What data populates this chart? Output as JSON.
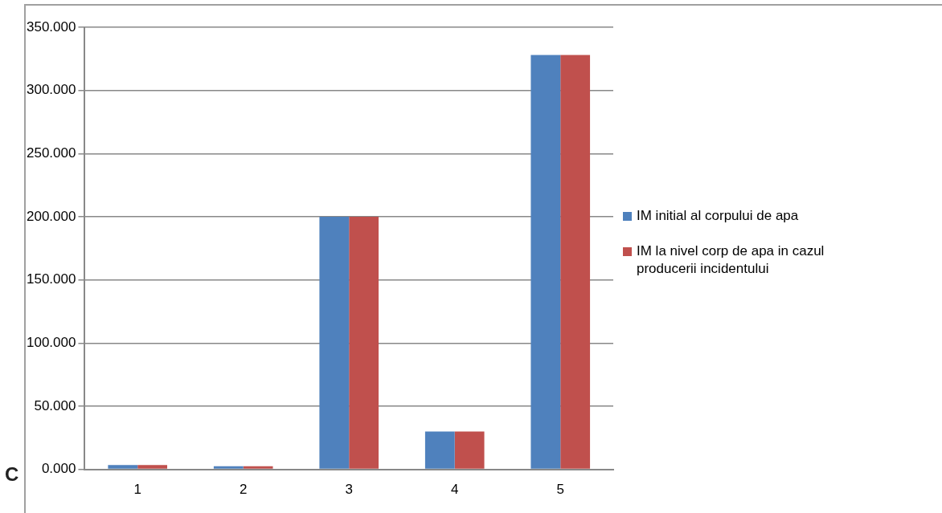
{
  "chart_data": {
    "type": "bar",
    "categories": [
      "1",
      "2",
      "3",
      "4",
      "5"
    ],
    "series": [
      {
        "name": "IM initial al corpului de apa",
        "color": "#4f81bd",
        "values": [
          3.4,
          2.4,
          200,
          30,
          328
        ]
      },
      {
        "name": "IM la nivel corp de apa in cazul producerii incidentului",
        "color": "#c0504d",
        "values": [
          3.4,
          2.4,
          200,
          30,
          328
        ]
      }
    ],
    "ylim": [
      0,
      350
    ],
    "yticks": [
      {
        "value": 0,
        "label": "0.000"
      },
      {
        "value": 50,
        "label": "50.000"
      },
      {
        "value": 100,
        "label": "100.000"
      },
      {
        "value": 150,
        "label": "150.000"
      },
      {
        "value": 200,
        "label": "200.000"
      },
      {
        "value": 250,
        "label": "250.000"
      },
      {
        "value": 300,
        "label": "300.000"
      },
      {
        "value": 350,
        "label": "350.000"
      }
    ],
    "grid": "y",
    "legend": "right",
    "annotations": [
      "C"
    ]
  }
}
